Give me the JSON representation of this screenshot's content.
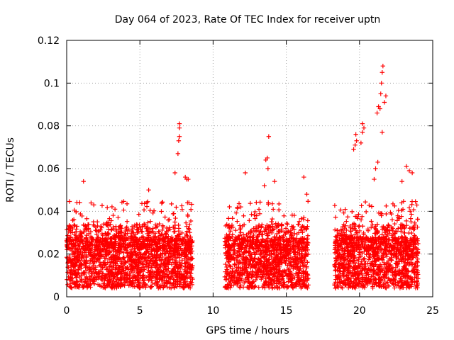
{
  "chart_data": {
    "type": "scatter",
    "title": "Day 064 of 2023, Rate Of TEC Index for receiver uptn",
    "xlabel": "GPS time / hours",
    "ylabel": "ROTI / TECUs",
    "xlim": [
      0,
      25
    ],
    "ylim": [
      0,
      0.12
    ],
    "xticks": [
      0,
      5,
      10,
      15,
      20,
      25
    ],
    "yticks": [
      0,
      0.02,
      0.04,
      0.06,
      0.08,
      0.1,
      0.12
    ],
    "xtick_labels": [
      "0",
      "5",
      "10",
      "15",
      "20",
      "25"
    ],
    "ytick_labels": [
      "0",
      "0.02",
      "0.04",
      "0.06",
      "0.08",
      "0.1",
      "0.12"
    ],
    "grid": true,
    "marker": "plus",
    "marker_color": "#ff0000",
    "series": [
      {
        "name": "ROTI",
        "segments": [
          {
            "x_start": 0.0,
            "x_end": 8.6
          },
          {
            "x_start": 10.8,
            "x_end": 16.5
          },
          {
            "x_start": 18.3,
            "x_end": 24.0
          }
        ],
        "x": [
          1.15,
          3.3,
          5.6,
          7.6,
          7.65,
          7.7,
          7.7,
          7.7,
          8.1,
          8.2,
          7.4,
          8.3,
          12.2,
          13.6,
          13.7,
          13.8,
          13.75,
          13.5,
          14.2,
          16.2,
          16.4,
          19.6,
          19.7,
          19.75,
          19.8,
          20.1,
          20.2,
          20.2,
          20.3,
          21.0,
          21.1,
          21.2,
          21.3,
          21.4,
          21.45,
          21.5,
          21.55,
          21.6,
          21.7,
          21.8,
          21.55,
          21.25,
          22.9,
          23.2,
          23.4,
          23.6
        ],
        "y": [
          0.054,
          0.041,
          0.05,
          0.067,
          0.073,
          0.075,
          0.079,
          0.081,
          0.056,
          0.055,
          0.058,
          0.055,
          0.058,
          0.064,
          0.065,
          0.075,
          0.06,
          0.052,
          0.054,
          0.056,
          0.048,
          0.069,
          0.071,
          0.076,
          0.073,
          0.072,
          0.077,
          0.081,
          0.079,
          0.055,
          0.06,
          0.086,
          0.089,
          0.088,
          0.095,
          0.1,
          0.105,
          0.108,
          0.091,
          0.094,
          0.077,
          0.063,
          0.054,
          0.061,
          0.059,
          0.058
        ]
      }
    ]
  }
}
